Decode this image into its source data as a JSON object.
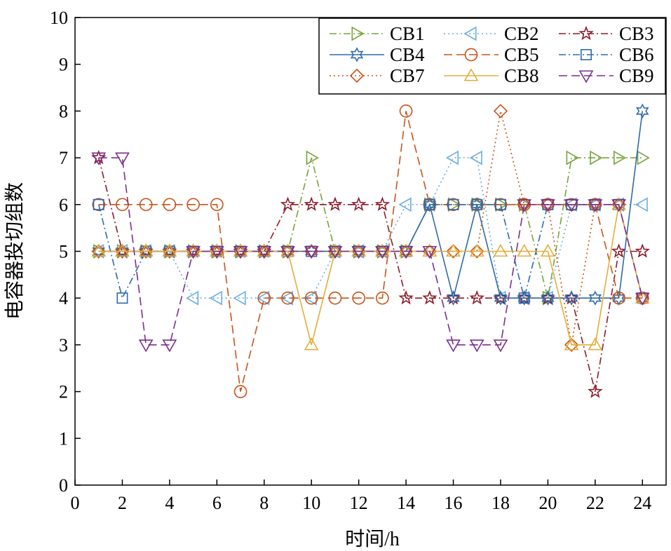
{
  "chart_data": {
    "type": "line",
    "title": "",
    "xlabel": "时间/h",
    "ylabel": "电容器投切组数",
    "xlim": [
      0,
      25
    ],
    "ylim": [
      0,
      10
    ],
    "xticks": [
      0,
      2,
      4,
      6,
      8,
      10,
      12,
      14,
      16,
      18,
      20,
      22,
      24
    ],
    "yticks": [
      0,
      1,
      2,
      3,
      4,
      5,
      6,
      7,
      8,
      9,
      10
    ],
    "grid": false,
    "legend_position": "top-right",
    "x": [
      1,
      2,
      3,
      4,
      5,
      6,
      7,
      8,
      9,
      10,
      11,
      12,
      13,
      14,
      15,
      16,
      17,
      18,
      19,
      20,
      21,
      22,
      23,
      24
    ],
    "series": [
      {
        "name": "CB1",
        "color": "#77a33a",
        "dash": "dashdot",
        "marker": "triangle-right",
        "values": [
          5,
          5,
          5,
          5,
          5,
          5,
          5,
          5,
          5,
          7,
          5,
          5,
          5,
          5,
          6,
          6,
          6,
          6,
          6,
          4,
          7,
          7,
          7,
          7
        ]
      },
      {
        "name": "CB2",
        "color": "#6aaddf",
        "dash": "dotted",
        "marker": "triangle-left",
        "values": [
          5,
          5,
          5,
          5,
          4,
          4,
          4,
          4,
          4,
          4,
          5,
          5,
          5,
          6,
          6,
          7,
          7,
          4,
          4,
          4,
          6,
          6,
          6,
          6
        ]
      },
      {
        "name": "CB3",
        "color": "#8b1a2a",
        "dash": "dashdot",
        "marker": "star5",
        "values": [
          7,
          5,
          5,
          5,
          5,
          5,
          5,
          5,
          6,
          6,
          6,
          6,
          6,
          4,
          4,
          4,
          4,
          4,
          4,
          4,
          4,
          2,
          5,
          5
        ]
      },
      {
        "name": "CB4",
        "color": "#2f6aaa",
        "dash": "solid",
        "marker": "star6",
        "values": [
          5,
          5,
          5,
          5,
          5,
          5,
          5,
          5,
          5,
          5,
          5,
          5,
          5,
          5,
          6,
          4,
          6,
          4,
          4,
          4,
          4,
          4,
          4,
          8
        ]
      },
      {
        "name": "CB5",
        "color": "#c8531b",
        "dash": "dashed",
        "marker": "circle",
        "values": [
          6,
          6,
          6,
          6,
          6,
          6,
          2,
          4,
          4,
          4,
          4,
          4,
          4,
          8,
          6,
          6,
          6,
          6,
          6,
          6,
          6,
          6,
          4,
          4
        ]
      },
      {
        "name": "CB6",
        "color": "#2f6aaa",
        "dash": "dashdot",
        "marker": "square",
        "values": [
          6,
          4,
          5,
          5,
          5,
          5,
          5,
          5,
          5,
          5,
          5,
          5,
          5,
          5,
          6,
          6,
          6,
          6,
          4,
          6,
          6,
          6,
          6,
          4
        ]
      },
      {
        "name": "CB7",
        "color": "#c8531b",
        "dash": "dotted",
        "marker": "diamond",
        "values": [
          5,
          5,
          5,
          5,
          5,
          5,
          5,
          5,
          5,
          5,
          5,
          5,
          5,
          5,
          5,
          5,
          5,
          8,
          6,
          6,
          3,
          6,
          6,
          4
        ]
      },
      {
        "name": "CB8",
        "color": "#e3ac3a",
        "dash": "solid",
        "marker": "triangle-up",
        "values": [
          5,
          5,
          5,
          5,
          5,
          5,
          5,
          5,
          5,
          3,
          5,
          5,
          5,
          5,
          5,
          5,
          5,
          5,
          5,
          5,
          3,
          3,
          6,
          4
        ]
      },
      {
        "name": "CB9",
        "color": "#7a2f8c",
        "dash": "dashed",
        "marker": "triangle-down",
        "values": [
          7,
          7,
          3,
          3,
          5,
          5,
          5,
          5,
          5,
          5,
          5,
          5,
          5,
          5,
          5,
          3,
          3,
          3,
          6,
          6,
          6,
          6,
          6,
          4
        ]
      }
    ]
  }
}
